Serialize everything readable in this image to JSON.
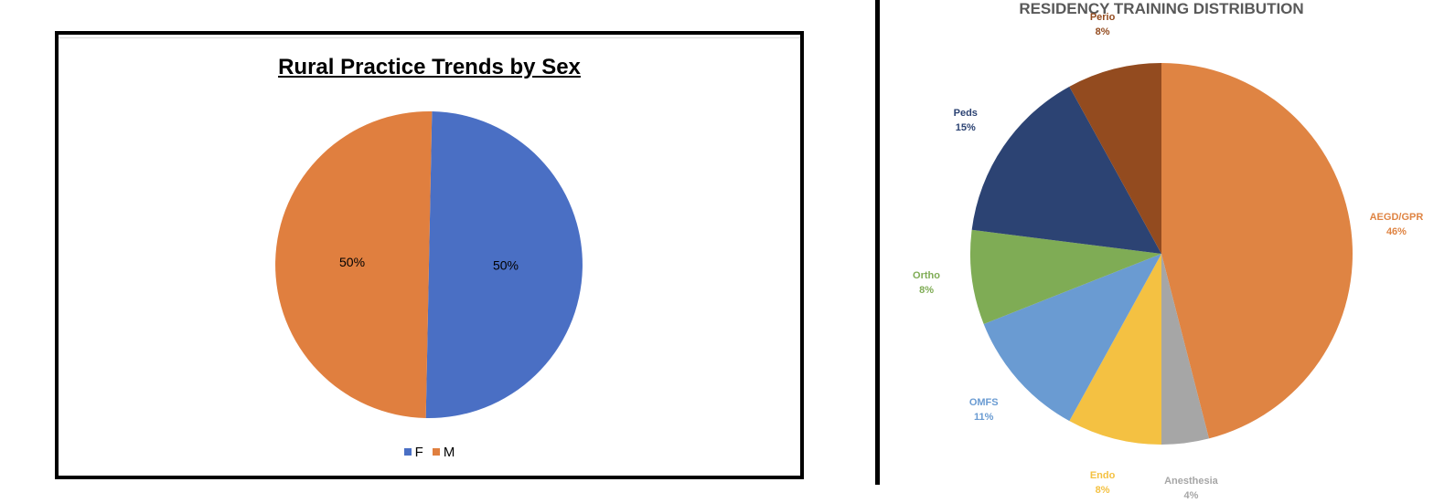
{
  "chart_data": [
    {
      "type": "pie",
      "title": "Rural Practice Trends by Sex",
      "categories": [
        "F",
        "M"
      ],
      "values": [
        50,
        50
      ],
      "data_labels": [
        "50%",
        "50%"
      ],
      "colors": [
        "#4a6fc4",
        "#e07f3f"
      ],
      "legend_position": "bottom"
    },
    {
      "type": "pie",
      "title": "RESIDENCY TRAINING DISTRIBUTION",
      "categories": [
        "AEGD/GPR",
        "Anesthesia",
        "Endo",
        "OMFS",
        "Ortho",
        "Peds",
        "Perio"
      ],
      "values": [
        46,
        4,
        8,
        11,
        8,
        15,
        8
      ],
      "data_labels": [
        "46%",
        "4%",
        "8%",
        "11%",
        "8%",
        "15%",
        "8%"
      ],
      "colors": [
        "#df8443",
        "#a6a6a6",
        "#f4c142",
        "#6a9bd2",
        "#7fac55",
        "#2c4373",
        "#934b1f"
      ],
      "label_colors": [
        "#df8443",
        "#a6a6a6",
        "#f4c142",
        "#6a9bd2",
        "#7fac55",
        "#2c4373",
        "#934b1f"
      ],
      "legend_position": "none"
    }
  ]
}
